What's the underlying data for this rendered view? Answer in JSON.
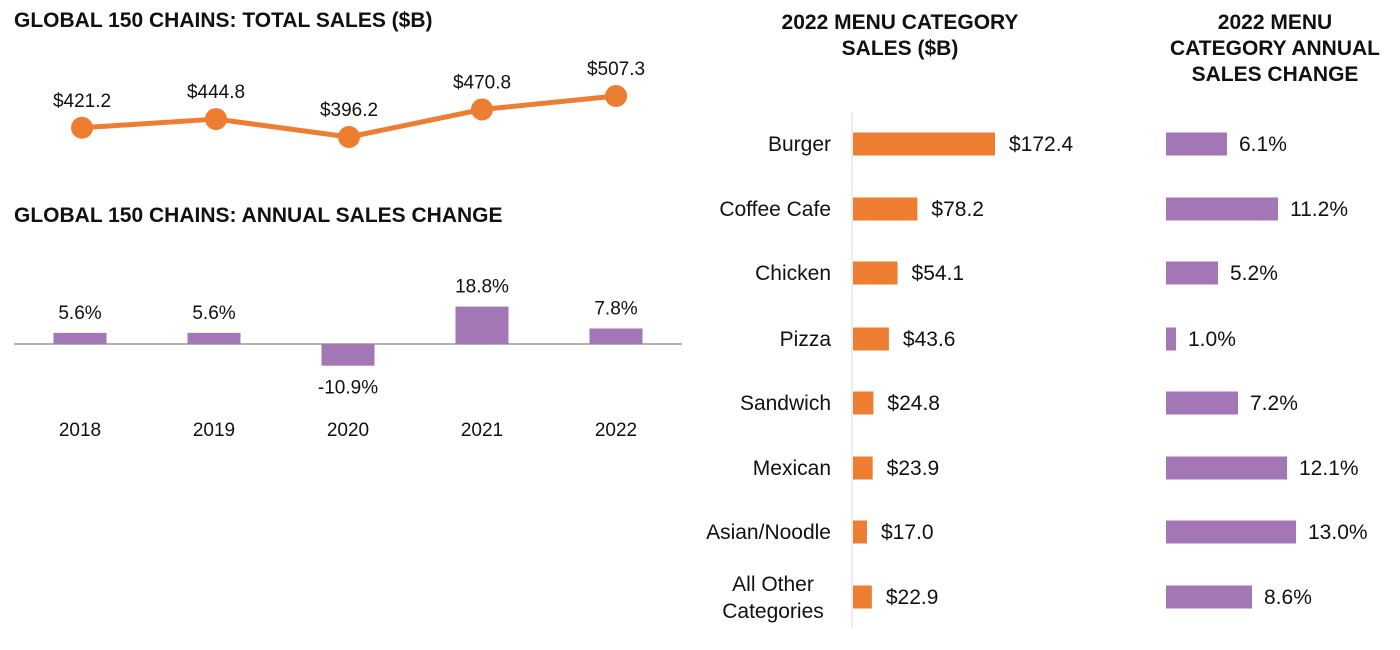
{
  "colors": {
    "orange": "#ED7D31",
    "purple": "#A376B6",
    "axis": "#999999",
    "text": "#111111"
  },
  "chart_data": [
    {
      "type": "line",
      "title": "GLOBAL 150 CHAINS: TOTAL SALES ($B)",
      "categories": [
        "2018",
        "2019",
        "2020",
        "2021",
        "2022"
      ],
      "values": [
        421.2,
        444.8,
        396.2,
        470.8,
        507.3
      ],
      "labels": [
        "$421.2",
        "$444.8",
        "$396.2",
        "$470.8",
        "$507.3"
      ],
      "xlabel": "",
      "ylabel": "",
      "grid": false
    },
    {
      "type": "bar",
      "title": "GLOBAL 150 CHAINS: ANNUAL SALES CHANGE",
      "categories": [
        "2018",
        "2019",
        "2020",
        "2021",
        "2022"
      ],
      "values": [
        5.6,
        5.6,
        -10.9,
        18.8,
        7.8
      ],
      "labels": [
        "5.6%",
        "5.6%",
        "-10.9%",
        "18.8%",
        "7.8%"
      ],
      "xlabel": "",
      "ylabel": "",
      "grid": false
    },
    {
      "type": "bar",
      "orientation": "horizontal",
      "title": "2022 MENU CATEGORY SALES ($B)",
      "title_lines": [
        "2022 MENU CATEGORY",
        "SALES ($B)"
      ],
      "categories": [
        "Burger",
        "Coffee Cafe",
        "Chicken",
        "Pizza",
        "Sandwich",
        "Mexican",
        "Asian/Noodle",
        "All Other Categories"
      ],
      "category_lines": [
        [
          "Burger"
        ],
        [
          "Coffee Cafe"
        ],
        [
          "Chicken"
        ],
        [
          "Pizza"
        ],
        [
          "Sandwich"
        ],
        [
          "Mexican"
        ],
        [
          "Asian/Noodle"
        ],
        [
          "All Other",
          "Categories"
        ]
      ],
      "values": [
        172.4,
        78.2,
        54.1,
        43.6,
        24.8,
        23.9,
        17.0,
        22.9
      ],
      "labels": [
        "$172.4",
        "$78.2",
        "$54.1",
        "$43.6",
        "$24.8",
        "$23.9",
        "$17.0",
        "$22.9"
      ]
    },
    {
      "type": "bar",
      "orientation": "horizontal",
      "title": "2022 MENU CATEGORY ANNUAL SALES CHANGE",
      "title_lines": [
        "2022 MENU",
        "CATEGORY ANNUAL",
        "SALES CHANGE"
      ],
      "categories": [
        "Burger",
        "Coffee Cafe",
        "Chicken",
        "Pizza",
        "Sandwich",
        "Mexican",
        "Asian/Noodle",
        "All Other Categories"
      ],
      "values": [
        6.1,
        11.2,
        5.2,
        1.0,
        7.2,
        12.1,
        13.0,
        8.6
      ],
      "labels": [
        "6.1%",
        "11.2%",
        "5.2%",
        "1.0%",
        "7.2%",
        "12.1%",
        "13.0%",
        "8.6%"
      ]
    }
  ]
}
